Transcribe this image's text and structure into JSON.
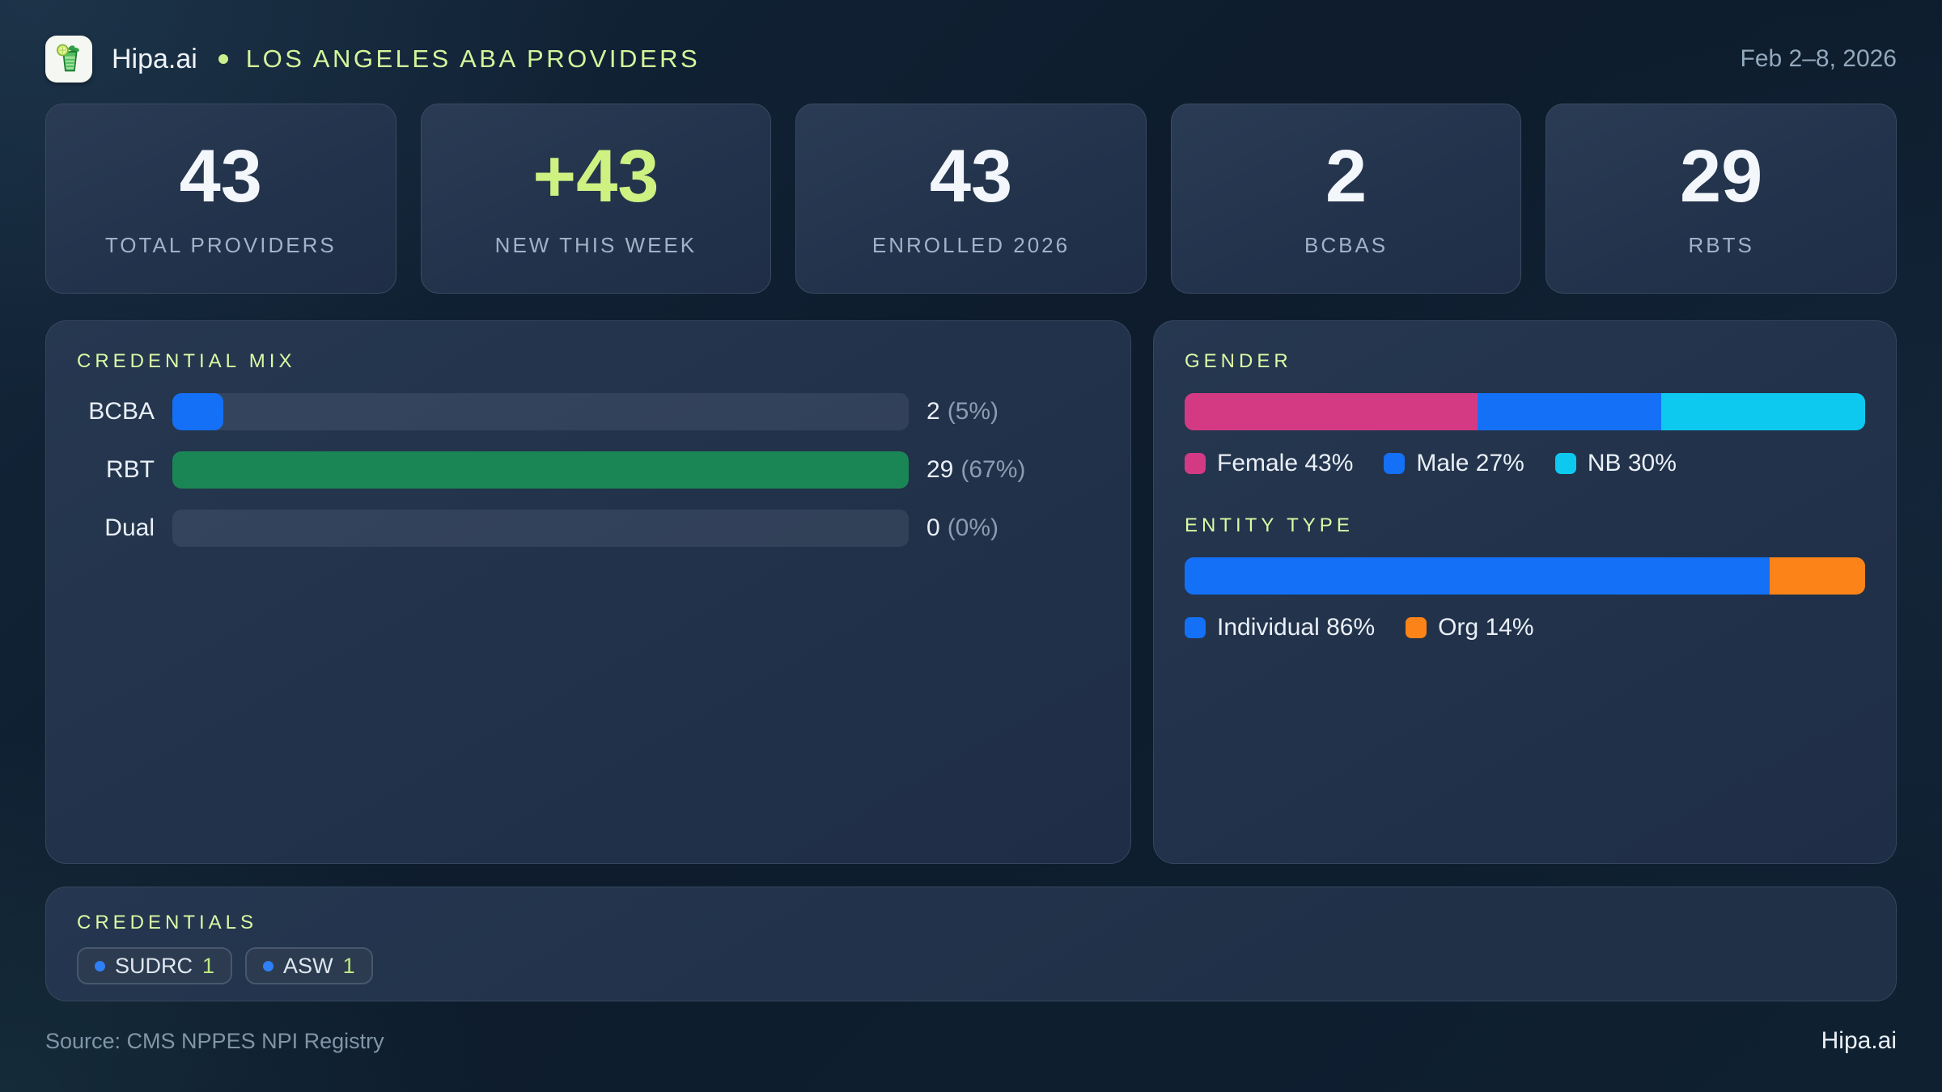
{
  "colors": {
    "accent_green": "#d5f59b",
    "lime_number": "#cff182",
    "blue": "#1470f6",
    "green": "#1b8655",
    "pink": "#d43a84",
    "cyan": "#0ec9ef",
    "orange": "#fb8317",
    "badge_dot_blue": "#2f7ff7"
  },
  "header": {
    "brand": "Hipa.ai",
    "separator_dot": "",
    "title": "LOS ANGELES ABA PROVIDERS",
    "date": "Feb 2–8, 2026",
    "logo_icon": "mojito-glass-icon"
  },
  "stats": [
    {
      "value": "43",
      "label": "TOTAL PROVIDERS"
    },
    {
      "value": "+43",
      "label": "NEW THIS WEEK",
      "accent": true
    },
    {
      "value": "43",
      "label": "ENROLLED 2026"
    },
    {
      "value": "2",
      "label": "BCBAS"
    },
    {
      "value": "29",
      "label": "RBTS"
    }
  ],
  "credential_mix": {
    "title": "CREDENTIAL MIX",
    "rows": [
      {
        "label": "BCBA",
        "count": "2",
        "pct": "(5%)",
        "bar_pct": 6.9,
        "color": "#1470f6"
      },
      {
        "label": "RBT",
        "count": "29",
        "pct": "(67%)",
        "bar_pct": 100,
        "color": "#1b8655"
      },
      {
        "label": "Dual",
        "count": "0",
        "pct": "(0%)",
        "bar_pct": 0,
        "color": "transparent"
      }
    ]
  },
  "gender": {
    "title": "GENDER",
    "segments": [
      {
        "label": "Female 43%",
        "pct": 43,
        "color": "#d43a84"
      },
      {
        "label": "Male 27%",
        "pct": 27,
        "color": "#1470f6"
      },
      {
        "label": "NB 30%",
        "pct": 30,
        "color": "#0ec9ef"
      }
    ]
  },
  "entity_type": {
    "title": "ENTITY TYPE",
    "segments": [
      {
        "label": "Individual 86%",
        "pct": 86,
        "color": "#1470f6"
      },
      {
        "label": "Org 14%",
        "pct": 14,
        "color": "#fb8317"
      }
    ]
  },
  "credentials": {
    "title": "CREDENTIALS",
    "badges": [
      {
        "label": "SUDRC",
        "count": "1"
      },
      {
        "label": "ASW",
        "count": "1"
      }
    ]
  },
  "footer": {
    "source": "Source: CMS NPPES NPI Registry",
    "brand": "Hipa.ai"
  },
  "chart_data": [
    {
      "type": "bar",
      "title": "CREDENTIAL MIX",
      "orientation": "horizontal",
      "categories": [
        "BCBA",
        "RBT",
        "Dual"
      ],
      "values": [
        2,
        29,
        0
      ],
      "value_labels": [
        "2 (5%)",
        "29 (67%)",
        "0 (0%)"
      ],
      "note": "bar lengths scaled relative to max category (RBT = full width)"
    },
    {
      "type": "bar",
      "subtype": "stacked-percent",
      "title": "GENDER",
      "categories": [
        "Female",
        "Male",
        "NB"
      ],
      "values": [
        43,
        27,
        30
      ],
      "unit": "%",
      "colors": [
        "#d43a84",
        "#1470f6",
        "#0ec9ef"
      ],
      "legend_position": "bottom"
    },
    {
      "type": "bar",
      "subtype": "stacked-percent",
      "title": "ENTITY TYPE",
      "categories": [
        "Individual",
        "Org"
      ],
      "values": [
        86,
        14
      ],
      "unit": "%",
      "colors": [
        "#1470f6",
        "#fb8317"
      ],
      "legend_position": "bottom"
    }
  ]
}
